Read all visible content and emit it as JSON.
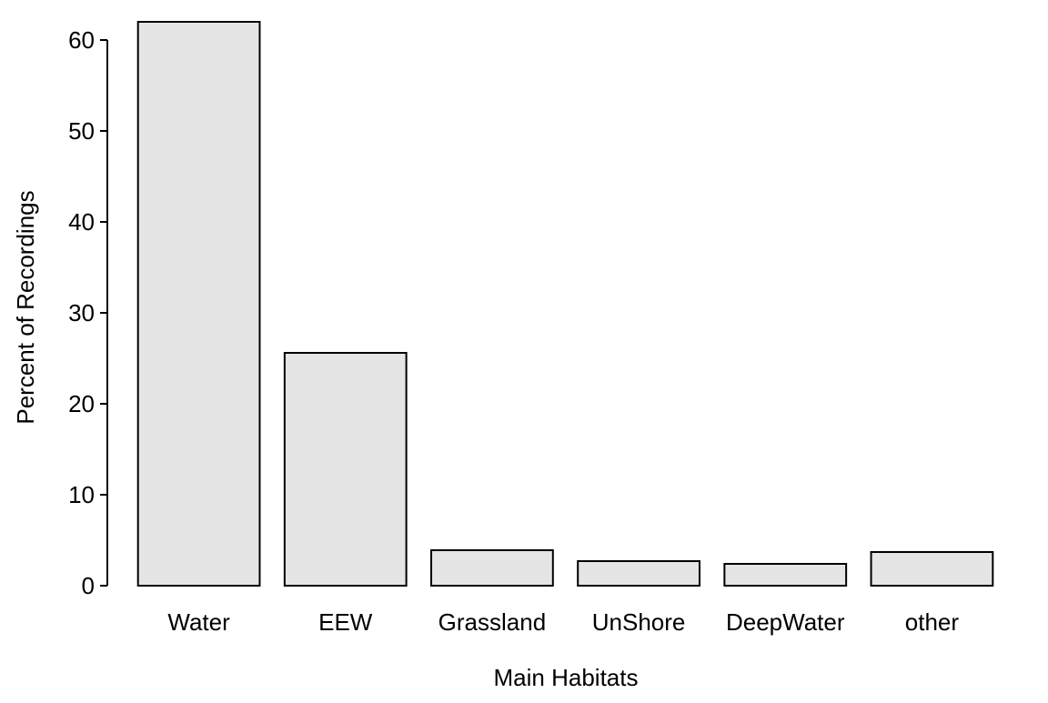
{
  "chart_data": {
    "type": "bar",
    "title": "",
    "xlabel": "Main Habitats",
    "ylabel": "Percent of Recordings",
    "categories": [
      "Water",
      "EEW",
      "Grassland",
      "UnShore",
      "DeepWater",
      "other"
    ],
    "values": [
      62,
      25.6,
      3.9,
      2.7,
      2.4,
      3.7
    ],
    "ylim": [
      0,
      62
    ],
    "yticks": [
      0,
      10,
      20,
      30,
      40,
      50,
      60
    ],
    "grid": false,
    "legend": "none",
    "colors": {
      "bar_fill": "#e5e5e5",
      "bar_stroke": "#000000",
      "axis": "#000000",
      "text": "#000000"
    }
  }
}
